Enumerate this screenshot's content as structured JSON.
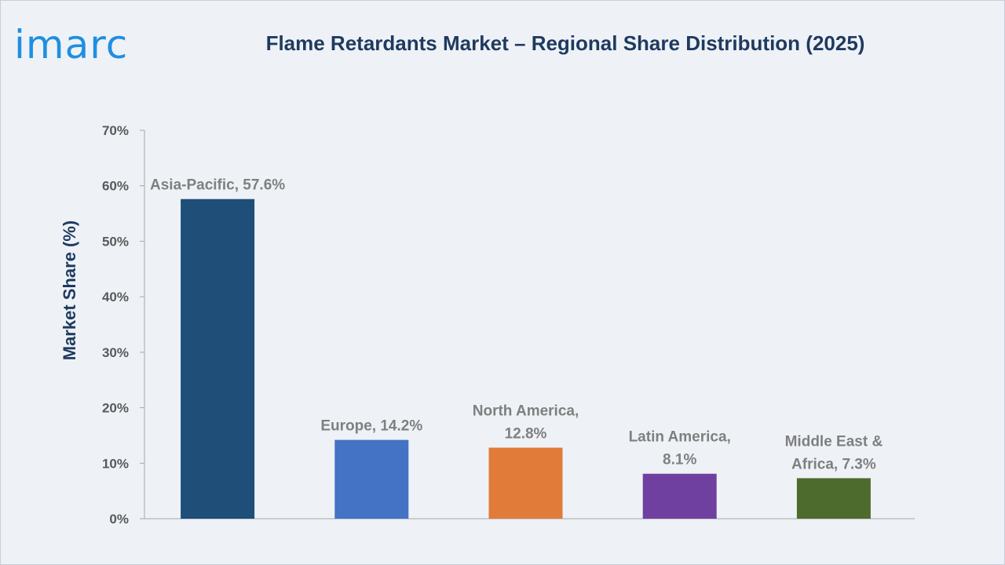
{
  "brand": {
    "logo_text": "imarc"
  },
  "chart_data": {
    "type": "bar",
    "title": "Flame Retardants Market – Regional Share Distribution (2025)",
    "ylabel": "Market Share (%)",
    "xlabel": "",
    "ylim": [
      0,
      70
    ],
    "yticks": [
      0,
      10,
      20,
      30,
      40,
      50,
      60,
      70
    ],
    "ytick_labels": [
      "0%",
      "10%",
      "20%",
      "30%",
      "40%",
      "50%",
      "60%",
      "70%"
    ],
    "grid": false,
    "categories": [
      "Asia-Pacific",
      "Europe",
      "North America",
      "Latin America",
      "Middle East & Africa"
    ],
    "values": [
      57.6,
      14.2,
      12.8,
      8.1,
      7.3
    ],
    "data_labels": [
      [
        "Asia-Pacific, 57.6%"
      ],
      [
        "Europe, 14.2%"
      ],
      [
        "North America,",
        "12.8%"
      ],
      [
        "Latin America,",
        "8.1%"
      ],
      [
        "Middle East &",
        "Africa, 7.3%"
      ]
    ],
    "colors": [
      "#1f4e79",
      "#4472c4",
      "#e07b39",
      "#7040a0",
      "#4e6b2e"
    ]
  }
}
